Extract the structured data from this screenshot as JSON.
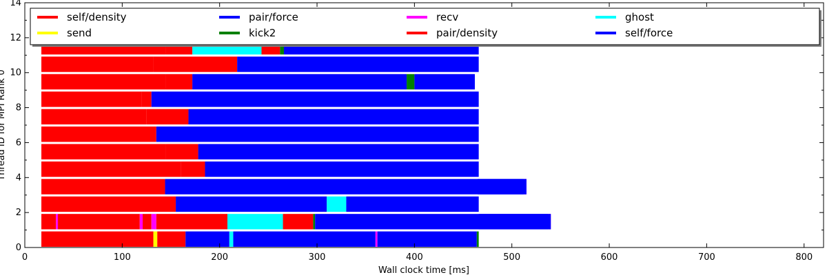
{
  "chart_data": {
    "type": "bar",
    "subtype": "gantt-task-timeline",
    "title": "",
    "xlabel": "Wall clock time [ms]",
    "ylabel": "Thread ID for MPI Rank 0",
    "xlim": [
      0,
      820
    ],
    "ylim": [
      0,
      14
    ],
    "xticks": [
      0,
      100,
      200,
      300,
      400,
      500,
      600,
      700,
      800
    ],
    "yticks": [
      0,
      2,
      4,
      6,
      8,
      10,
      12,
      14
    ],
    "grid": false,
    "legend_position": "top",
    "legend": [
      {
        "name": "self/density",
        "color": "#ff0000"
      },
      {
        "name": "send",
        "color": "#ffff00"
      },
      {
        "name": "pair/force",
        "color": "#0000ff"
      },
      {
        "name": "kick2",
        "color": "#008000"
      },
      {
        "name": "recv",
        "color": "#ff00ff"
      },
      {
        "name": "pair/density",
        "color": "#ff0000"
      },
      {
        "name": "ghost",
        "color": "#00ffff"
      },
      {
        "name": "self/force",
        "color": "#0000ff"
      }
    ],
    "threads": [
      {
        "thread": 0,
        "tasks": [
          {
            "type": "self/density",
            "start": 17,
            "end": 132
          },
          {
            "type": "send",
            "start": 132,
            "end": 136
          },
          {
            "type": "pair/density",
            "start": 136,
            "end": 165
          },
          {
            "type": "pair/force",
            "start": 165,
            "end": 210
          },
          {
            "type": "ghost",
            "start": 210,
            "end": 214
          },
          {
            "type": "pair/force",
            "start": 214,
            "end": 360
          },
          {
            "type": "recv",
            "start": 360,
            "end": 362
          },
          {
            "type": "pair/force",
            "start": 362,
            "end": 464
          },
          {
            "type": "kick2",
            "start": 464,
            "end": 466
          }
        ]
      },
      {
        "thread": 1,
        "tasks": [
          {
            "type": "pair/density",
            "start": 17,
            "end": 32
          },
          {
            "type": "recv",
            "start": 32,
            "end": 34
          },
          {
            "type": "pair/density",
            "start": 34,
            "end": 118
          },
          {
            "type": "recv",
            "start": 118,
            "end": 121
          },
          {
            "type": "pair/density",
            "start": 121,
            "end": 130
          },
          {
            "type": "recv",
            "start": 130,
            "end": 135
          },
          {
            "type": "pair/density",
            "start": 135,
            "end": 208
          },
          {
            "type": "ghost",
            "start": 208,
            "end": 265
          },
          {
            "type": "pair/density",
            "start": 265,
            "end": 296
          },
          {
            "type": "kick2",
            "start": 296,
            "end": 298
          },
          {
            "type": "pair/force",
            "start": 298,
            "end": 537
          },
          {
            "type": "recv",
            "start": 537,
            "end": 540
          },
          {
            "type": "pair/force",
            "start": 540,
            "end": 466
          }
        ]
      },
      {
        "thread": 2,
        "tasks": [
          {
            "type": "self/density",
            "start": 17,
            "end": 155
          },
          {
            "type": "pair/force",
            "start": 155,
            "end": 310
          },
          {
            "type": "ghost",
            "start": 310,
            "end": 330
          },
          {
            "type": "pair/force",
            "start": 330,
            "end": 466
          }
        ]
      },
      {
        "thread": 3,
        "tasks": [
          {
            "type": "self/density",
            "start": 17,
            "end": 144
          },
          {
            "type": "pair/force",
            "start": 144,
            "end": 512
          },
          {
            "type": "recv",
            "start": 512,
            "end": 515
          },
          {
            "type": "pair/force",
            "start": 515,
            "end": 465
          }
        ]
      },
      {
        "thread": 4,
        "tasks": [
          {
            "type": "self/density",
            "start": 17,
            "end": 160
          },
          {
            "type": "pair/density",
            "start": 160,
            "end": 185
          },
          {
            "type": "pair/force",
            "start": 185,
            "end": 466
          }
        ]
      },
      {
        "thread": 5,
        "tasks": [
          {
            "type": "self/density",
            "start": 17,
            "end": 145
          },
          {
            "type": "pair/density",
            "start": 145,
            "end": 178
          },
          {
            "type": "pair/force",
            "start": 178,
            "end": 466
          }
        ]
      },
      {
        "thread": 6,
        "tasks": [
          {
            "type": "self/density",
            "start": 17,
            "end": 135
          },
          {
            "type": "pair/force",
            "start": 135,
            "end": 466
          }
        ]
      },
      {
        "thread": 7,
        "tasks": [
          {
            "type": "self/density",
            "start": 17,
            "end": 125
          },
          {
            "type": "pair/density",
            "start": 125,
            "end": 168
          },
          {
            "type": "pair/force",
            "start": 168,
            "end": 466
          }
        ]
      },
      {
        "thread": 8,
        "tasks": [
          {
            "type": "self/density",
            "start": 17,
            "end": 120
          },
          {
            "type": "pair/density",
            "start": 120,
            "end": 130
          },
          {
            "type": "pair/force",
            "start": 130,
            "end": 466
          }
        ]
      },
      {
        "thread": 9,
        "tasks": [
          {
            "type": "self/density",
            "start": 17,
            "end": 145
          },
          {
            "type": "pair/density",
            "start": 145,
            "end": 172
          },
          {
            "type": "pair/force",
            "start": 172,
            "end": 392
          },
          {
            "type": "kick2",
            "start": 392,
            "end": 400
          },
          {
            "type": "pair/force",
            "start": 400,
            "end": 462
          }
        ]
      },
      {
        "thread": 10,
        "tasks": [
          {
            "type": "self/density",
            "start": 17,
            "end": 132
          },
          {
            "type": "pair/density",
            "start": 132,
            "end": 218
          },
          {
            "type": "pair/force",
            "start": 218,
            "end": 466
          }
        ]
      },
      {
        "thread": 11,
        "tasks": [
          {
            "type": "self/density",
            "start": 17,
            "end": 145
          },
          {
            "type": "pair/density",
            "start": 145,
            "end": 172
          },
          {
            "type": "ghost",
            "start": 172,
            "end": 243
          },
          {
            "type": "pair/density",
            "start": 243,
            "end": 262
          },
          {
            "type": "kick2",
            "start": 262,
            "end": 266
          },
          {
            "type": "pair/force",
            "start": 266,
            "end": 466
          }
        ]
      }
    ]
  }
}
